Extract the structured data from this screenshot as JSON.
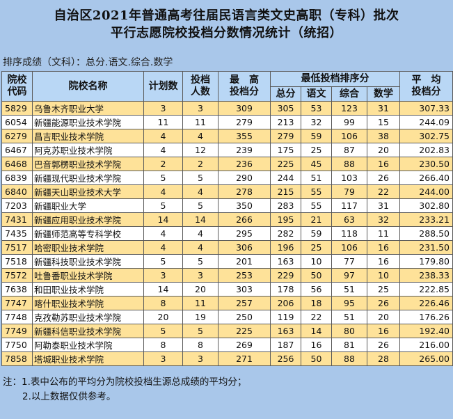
{
  "title_line1": "自治区2021年普通高考往届民语言类文史高职（专科）批次",
  "title_line2": "平行志愿院校投档分数情况统计（统招）",
  "sort_note": "排序成绩（文科）：总分.语文.综合.数学",
  "headers": {
    "code": "院校\n代码",
    "name": "院校名称",
    "plan": "计划数",
    "admitted": "投档\n人数",
    "max_score": "最　高\n投档分",
    "min_rank_group": "最低投档排序分",
    "total": "总分",
    "chinese": "语文",
    "comprehensive": "综合",
    "math": "数学",
    "avg": "平　均\n投档分"
  },
  "rows": [
    {
      "code": "5829",
      "name": "乌鲁木齐职业大学",
      "plan": "3",
      "admitted": "3",
      "max": "309",
      "total": "305",
      "chinese": "53",
      "comp": "123",
      "math": "31",
      "avg": "307.33"
    },
    {
      "code": "6054",
      "name": "新疆能源职业技术学院",
      "plan": "11",
      "admitted": "11",
      "max": "279",
      "total": "213",
      "chinese": "32",
      "comp": "99",
      "math": "15",
      "avg": "244.09"
    },
    {
      "code": "6279",
      "name": "昌吉职业技术学院",
      "plan": "4",
      "admitted": "4",
      "max": "355",
      "total": "279",
      "chinese": "59",
      "comp": "106",
      "math": "38",
      "avg": "302.75"
    },
    {
      "code": "6467",
      "name": "阿克苏职业技术学院",
      "plan": "4",
      "admitted": "12",
      "max": "239",
      "total": "175",
      "chinese": "25",
      "comp": "87",
      "math": "20",
      "avg": "202.83"
    },
    {
      "code": "6468",
      "name": "巴音郭楞职业技术学院",
      "plan": "2",
      "admitted": "2",
      "max": "236",
      "total": "225",
      "chinese": "45",
      "comp": "88",
      "math": "16",
      "avg": "230.50"
    },
    {
      "code": "6839",
      "name": "新疆现代职业技术学院",
      "plan": "5",
      "admitted": "5",
      "max": "290",
      "total": "244",
      "chinese": "51",
      "comp": "103",
      "math": "26",
      "avg": "266.40"
    },
    {
      "code": "6840",
      "name": "新疆天山职业技术大学",
      "plan": "4",
      "admitted": "4",
      "max": "278",
      "total": "215",
      "chinese": "55",
      "comp": "79",
      "math": "22",
      "avg": "244.00"
    },
    {
      "code": "7203",
      "name": "新疆职业大学",
      "plan": "5",
      "admitted": "5",
      "max": "350",
      "total": "283",
      "chinese": "55",
      "comp": "117",
      "math": "31",
      "avg": "302.80"
    },
    {
      "code": "7431",
      "name": "新疆应用职业技术学院",
      "plan": "14",
      "admitted": "14",
      "max": "266",
      "total": "195",
      "chinese": "21",
      "comp": "63",
      "math": "32",
      "avg": "233.21"
    },
    {
      "code": "7435",
      "name": "新疆师范高等专科学校",
      "plan": "4",
      "admitted": "4",
      "max": "295",
      "total": "282",
      "chinese": "59",
      "comp": "118",
      "math": "11",
      "avg": "288.50"
    },
    {
      "code": "7517",
      "name": "哈密职业技术学院",
      "plan": "4",
      "admitted": "4",
      "max": "306",
      "total": "196",
      "chinese": "25",
      "comp": "106",
      "math": "16",
      "avg": "231.50"
    },
    {
      "code": "7518",
      "name": "新疆科技职业技术学院",
      "plan": "5",
      "admitted": "5",
      "max": "201",
      "total": "163",
      "chinese": "10",
      "comp": "77",
      "math": "16",
      "avg": "179.80"
    },
    {
      "code": "7572",
      "name": "吐鲁番职业技术学院",
      "plan": "3",
      "admitted": "3",
      "max": "253",
      "total": "229",
      "chinese": "50",
      "comp": "97",
      "math": "10",
      "avg": "238.33"
    },
    {
      "code": "7638",
      "name": "和田职业技术学院",
      "plan": "14",
      "admitted": "20",
      "max": "303",
      "total": "178",
      "chinese": "56",
      "comp": "51",
      "math": "25",
      "avg": "222.85"
    },
    {
      "code": "7747",
      "name": "喀什职业技术学院",
      "plan": "8",
      "admitted": "11",
      "max": "257",
      "total": "206",
      "chinese": "18",
      "comp": "95",
      "math": "26",
      "avg": "226.46"
    },
    {
      "code": "7748",
      "name": "克孜勒苏职业技术学院",
      "plan": "20",
      "admitted": "19",
      "max": "250",
      "total": "119",
      "chinese": "22",
      "comp": "51",
      "math": "20",
      "avg": "176.26"
    },
    {
      "code": "7749",
      "name": "新疆科信职业技术学院",
      "plan": "5",
      "admitted": "5",
      "max": "225",
      "total": "163",
      "chinese": "14",
      "comp": "80",
      "math": "16",
      "avg": "192.40"
    },
    {
      "code": "7750",
      "name": "阿勒泰职业技术学院",
      "plan": "8",
      "admitted": "8",
      "max": "269",
      "total": "187",
      "chinese": "16",
      "comp": "81",
      "math": "26",
      "avg": "216.00"
    },
    {
      "code": "7858",
      "name": "塔城职业技术学院",
      "plan": "3",
      "admitted": "3",
      "max": "271",
      "total": "256",
      "chinese": "50",
      "comp": "88",
      "math": "28",
      "avg": "265.00"
    }
  ],
  "notes": {
    "line1": "注：1.表中公布的平均分为院校投档生源总成绩的平均分；",
    "line2": "2.以上数据仅供参考。"
  },
  "colors": {
    "background": "#a9c7ea",
    "header": "#b9d7f5",
    "row_highlight": "#fee299",
    "row_plain": "#ffffff"
  }
}
